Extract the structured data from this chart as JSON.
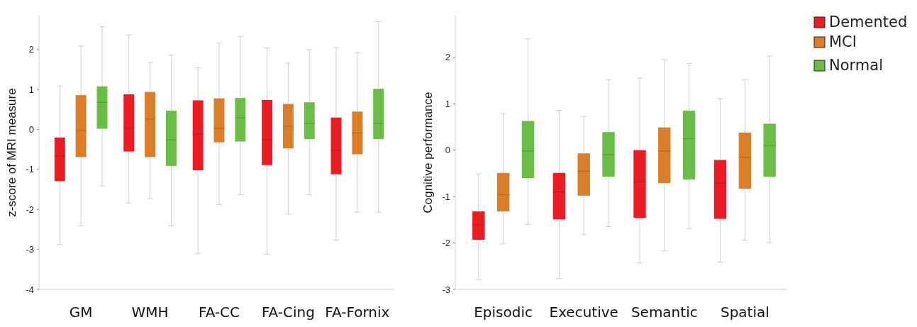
{
  "chart_data": [
    {
      "type": "box",
      "ylabel": "z-score of MRI measure",
      "categories": [
        "GM",
        "WMH",
        "FA-CC",
        "FA-Cing",
        "FA-Fornix"
      ],
      "ylim": [
        -4,
        2.85
      ],
      "yticks": [
        -4,
        -3,
        -2,
        -1,
        0,
        1,
        2
      ],
      "series": [
        {
          "color": "#ed1c24",
          "boxes": [
            {
              "low": -2.88,
              "q1": -1.29,
              "median": -0.66,
              "q3": -0.2,
              "high": 1.09
            },
            {
              "low": -1.84,
              "q1": -0.55,
              "median": 0.03,
              "q3": 0.88,
              "high": 2.37
            },
            {
              "low": -3.1,
              "q1": -1.02,
              "median": -0.11,
              "q3": 0.73,
              "high": 1.54
            },
            {
              "low": -3.12,
              "q1": -0.89,
              "median": -0.26,
              "q3": 0.74,
              "high": 2.04
            },
            {
              "low": -2.77,
              "q1": -1.12,
              "median": -0.52,
              "q3": 0.3,
              "high": 2.05
            }
          ]
        },
        {
          "color": "#dc7d27",
          "boxes": [
            {
              "low": -2.41,
              "q1": -0.69,
              "median": -0.03,
              "q3": 0.86,
              "high": 2.09
            },
            {
              "low": -1.73,
              "q1": -0.69,
              "median": 0.26,
              "q3": 0.94,
              "high": 1.68
            },
            {
              "low": -1.88,
              "q1": -0.32,
              "median": 0.03,
              "q3": 0.78,
              "high": 2.16
            },
            {
              "low": -2.11,
              "q1": -0.47,
              "median": 0.08,
              "q3": 0.64,
              "high": 1.66
            },
            {
              "low": -2.07,
              "q1": -0.62,
              "median": -0.09,
              "q3": 0.45,
              "high": 1.92
            }
          ]
        },
        {
          "color": "#6abd45",
          "boxes": [
            {
              "low": -1.41,
              "q1": 0.02,
              "median": 0.68,
              "q3": 1.08,
              "high": 2.57
            },
            {
              "low": -2.41,
              "q1": -0.91,
              "median": -0.26,
              "q3": 0.47,
              "high": 1.86
            },
            {
              "low": -1.63,
              "q1": -0.3,
              "median": 0.29,
              "q3": 0.79,
              "high": 2.33
            },
            {
              "low": -1.63,
              "q1": -0.24,
              "median": 0.15,
              "q3": 0.68,
              "high": 2.0
            },
            {
              "low": -2.07,
              "q1": -0.24,
              "median": 0.15,
              "q3": 1.02,
              "high": 2.7
            }
          ]
        }
      ]
    },
    {
      "type": "box",
      "ylabel": "Cognitive performance",
      "categories": [
        "Episodic",
        "Executive",
        "Semantic",
        "Spatial"
      ],
      "ylim": [
        -3,
        2.9
      ],
      "yticks": [
        -3,
        -2,
        -1,
        0,
        1,
        2
      ],
      "legend": "top right",
      "series": [
        {
          "name": "Demented",
          "color": "#ed1c24",
          "boxes": [
            {
              "low": -2.79,
              "q1": -1.93,
              "median": -1.61,
              "q3": -1.32,
              "high": -0.51
            },
            {
              "low": -2.77,
              "q1": -1.49,
              "median": -0.9,
              "q3": -0.49,
              "high": 0.86
            },
            {
              "low": -2.43,
              "q1": -1.46,
              "median": -0.68,
              "q3": 0,
              "high": 1.56
            },
            {
              "low": -2.41,
              "q1": -1.48,
              "median": -0.71,
              "q3": -0.21,
              "high": 1.11
            }
          ]
        },
        {
          "name": "MCI",
          "color": "#dc7d27",
          "boxes": [
            {
              "low": -2.02,
              "q1": -1.32,
              "median": -0.96,
              "q3": -0.49,
              "high": 0.79
            },
            {
              "low": -1.82,
              "q1": -0.98,
              "median": -0.45,
              "q3": -0.07,
              "high": 0.73
            },
            {
              "low": -2.17,
              "q1": -0.71,
              "median": -0.02,
              "q3": 0.49,
              "high": 1.95
            },
            {
              "low": -1.94,
              "q1": -0.83,
              "median": -0.15,
              "q3": 0.38,
              "high": 1.52
            }
          ]
        },
        {
          "name": "Normal",
          "color": "#6abd45",
          "boxes": [
            {
              "low": -1.6,
              "q1": -0.6,
              "median": -0.02,
              "q3": 0.63,
              "high": 2.4
            },
            {
              "low": -1.65,
              "q1": -0.57,
              "median": -0.1,
              "q3": 0.39,
              "high": 1.52
            },
            {
              "low": -1.69,
              "q1": -0.63,
              "median": 0.25,
              "q3": 0.85,
              "high": 1.87
            },
            {
              "low": -1.99,
              "q1": -0.57,
              "median": 0.1,
              "q3": 0.57,
              "high": 2.03
            }
          ]
        }
      ]
    }
  ]
}
